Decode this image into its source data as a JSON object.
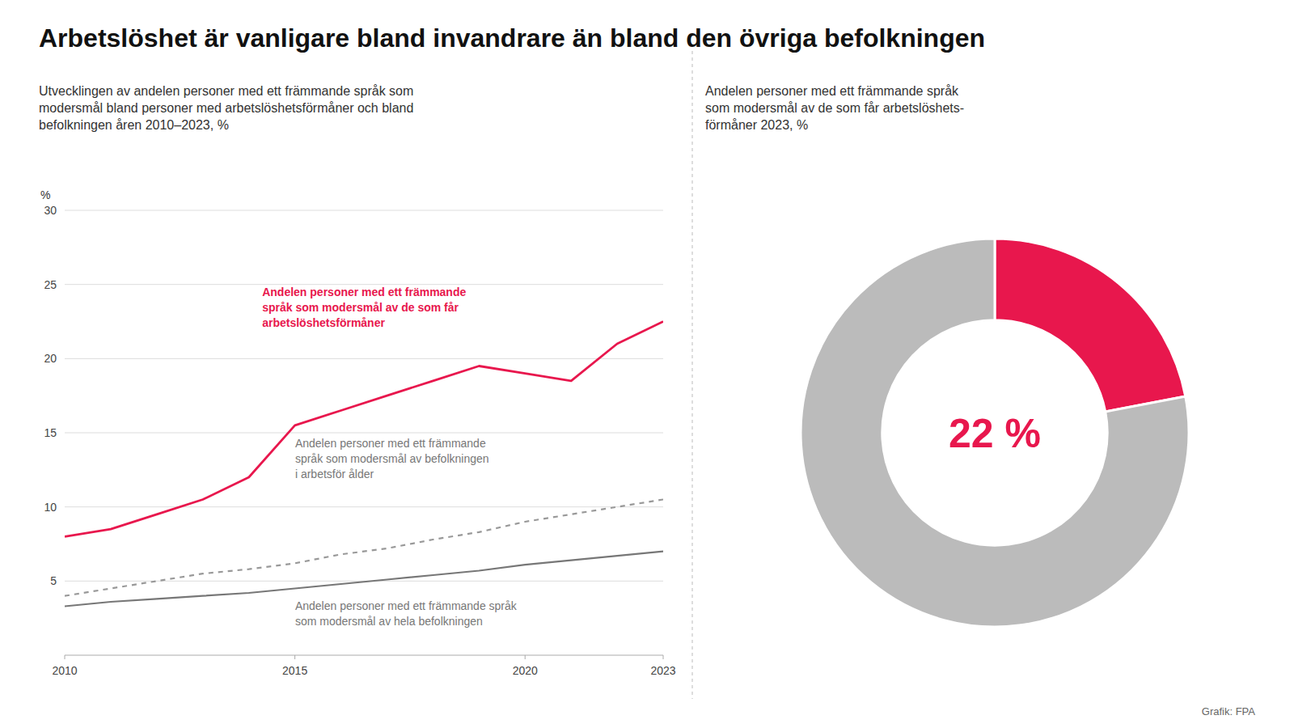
{
  "title": "Arbetslöshet är vanligare bland invandrare än bland den övriga befolkningen",
  "credit": "Grafik: FPA",
  "chart_data": [
    {
      "type": "line",
      "subtitle": "Utvecklingen av andelen personer med ett främmande språk som\nmodersmål bland personer med arbetslöshetsförmåner och bland\nbefolkningen åren 2010–2023, %",
      "x": [
        2010,
        2011,
        2012,
        2013,
        2014,
        2015,
        2016,
        2017,
        2018,
        2019,
        2020,
        2021,
        2022,
        2023
      ],
      "series": [
        {
          "name": "Andelen personer med ett främmande\nspråk som modersmål av de som får\narbetslöshetsförmåner",
          "color": "#E8174D",
          "line_style": "solid",
          "values": [
            8.0,
            8.5,
            9.5,
            10.5,
            12.0,
            15.5,
            16.5,
            17.5,
            18.5,
            19.5,
            19.0,
            18.5,
            21.0,
            22.5
          ]
        },
        {
          "name": "Andelen personer med ett främmande\nspråk som modersmål av befolkningen\ni arbetsför ålder",
          "color": "#999999",
          "line_style": "dashed",
          "values": [
            4.0,
            4.5,
            5.0,
            5.5,
            5.8,
            6.2,
            6.8,
            7.2,
            7.8,
            8.3,
            9.0,
            9.5,
            10.0,
            10.5
          ]
        },
        {
          "name": "Andelen personer med ett främmande språk\nsom modersmål av hela befolkningen",
          "color": "#777777",
          "line_style": "solid",
          "values": [
            3.3,
            3.6,
            3.8,
            4.0,
            4.2,
            4.5,
            4.8,
            5.1,
            5.4,
            5.7,
            6.1,
            6.4,
            6.7,
            7.0
          ]
        }
      ],
      "ylabel": "%",
      "xlim": [
        2010,
        2023
      ],
      "xticks": [
        2010,
        2015,
        2020,
        2023
      ],
      "ylim": [
        0,
        30
      ],
      "yticks": [
        5,
        10,
        15,
        20,
        25,
        30
      ],
      "grid": true
    },
    {
      "type": "pie",
      "subtitle": "Andelen personer med ett främmande språk\nsom modersmål av de som får arbetslöshets-\nförmåner 2023, %",
      "values": [
        22,
        78
      ],
      "colors": [
        "#E8174D",
        "#BBBBBB"
      ],
      "center_label": "22 %"
    }
  ]
}
